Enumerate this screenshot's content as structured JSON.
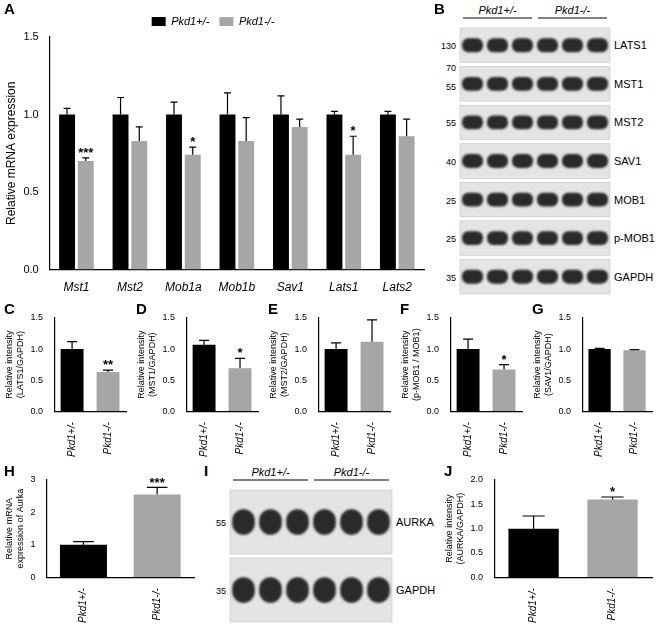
{
  "chart_data": [
    {
      "type": "bar",
      "title": "A",
      "y_label": "Relative mRNA expression",
      "categories": [
        "Mst1",
        "Mst2",
        "Mob1a",
        "Mob1b",
        "Sav1",
        "Lats1",
        "Lats2"
      ],
      "series": [
        {
          "name": "Pkd1+/-",
          "color": "#000000",
          "values": [
            1.0,
            1.0,
            1.0,
            1.0,
            1.0,
            1.0,
            1.0
          ],
          "errors": [
            0.04,
            0.11,
            0.08,
            0.14,
            0.12,
            0.02,
            0.02
          ]
        },
        {
          "name": "Pkd1-/-",
          "color": "#a6a6a6",
          "values": [
            0.7,
            0.83,
            0.74,
            0.83,
            0.92,
            0.74,
            0.86
          ],
          "errors": [
            0.02,
            0.09,
            0.05,
            0.15,
            0.05,
            0.12,
            0.11
          ]
        }
      ],
      "ylim": [
        0,
        1.5
      ],
      "yticks": [
        {
          "value": 0,
          "label": "0.0"
        },
        {
          "value": 0.5,
          "label": "0.5"
        },
        {
          "value": 1,
          "label": "1.0"
        },
        {
          "value": 1.5,
          "label": "1.5"
        }
      ],
      "legend": "top",
      "grid": false,
      "annotations": [
        {
          "text": "***",
          "category": "Mst1",
          "series": "Pkd1-/-"
        },
        {
          "text": "*",
          "category": "Mob1a",
          "series": "Pkd1-/-"
        },
        {
          "text": "*",
          "category": "Lats1",
          "series": "Pkd1-/-"
        }
      ]
    },
    {
      "type": "bar",
      "title": "C",
      "y_label": [
        "Relative intensity",
        "(LATS1/GAPDH)"
      ],
      "categories": [
        "Pkd1+/-",
        "Pkd1-/-"
      ],
      "values": [
        1.0,
        0.63
      ],
      "errors": [
        0.12,
        0.03
      ],
      "colors": [
        "#000000",
        "#a6a6a6"
      ],
      "ylim": [
        0,
        1.5
      ],
      "yticks": [
        {
          "value": 0,
          "label": "0.0"
        },
        {
          "value": 0.5,
          "label": "0.5"
        },
        {
          "value": 1,
          "label": "1.0"
        },
        {
          "value": 1.5,
          "label": "1.5"
        }
      ],
      "grid": false,
      "annotations": [
        {
          "text": "**",
          "category": "Pkd1-/-"
        }
      ]
    },
    {
      "type": "bar",
      "title": "D",
      "y_label": [
        "Relative intensity",
        "(MST1/GAPDH)"
      ],
      "categories": [
        "Pkd1+/-",
        "Pkd1-/-"
      ],
      "values": [
        1.07,
        0.69
      ],
      "errors": [
        0.07,
        0.16
      ],
      "colors": [
        "#000000",
        "#a6a6a6"
      ],
      "ylim": [
        0,
        1.5
      ],
      "yticks": [
        {
          "value": 0,
          "label": "0.0"
        },
        {
          "value": 0.5,
          "label": "0.5"
        },
        {
          "value": 1,
          "label": "1.0"
        },
        {
          "value": 1.5,
          "label": "1.5"
        }
      ],
      "grid": false,
      "annotations": [
        {
          "text": "*",
          "category": "Pkd1-/-"
        }
      ]
    },
    {
      "type": "bar",
      "title": "E",
      "y_label": [
        "Relative intensity",
        "(MST2/GAPDH)"
      ],
      "categories": [
        "Pkd1+/-",
        "Pkd1-/-"
      ],
      "values": [
        1.0,
        1.12
      ],
      "errors": [
        0.1,
        0.35
      ],
      "colors": [
        "#000000",
        "#a6a6a6"
      ],
      "ylim": [
        0,
        1.5
      ],
      "yticks": [
        {
          "value": 0,
          "label": "0.0"
        },
        {
          "value": 0.5,
          "label": "0.5"
        },
        {
          "value": 1,
          "label": "1.0"
        },
        {
          "value": 1.5,
          "label": "1.5"
        }
      ],
      "grid": false
    },
    {
      "type": "bar",
      "title": "F",
      "y_label": [
        "Relative intensity",
        "(p-MOB1 / MOB1)"
      ],
      "categories": [
        "Pkd1+/-",
        "Pkd1-/-"
      ],
      "values": [
        1.0,
        0.67
      ],
      "errors": [
        0.16,
        0.08
      ],
      "colors": [
        "#000000",
        "#a6a6a6"
      ],
      "ylim": [
        0,
        1.5
      ],
      "yticks": [
        {
          "value": 0,
          "label": "0.0"
        },
        {
          "value": 0.5,
          "label": "0.5"
        },
        {
          "value": 1,
          "label": "1.0"
        },
        {
          "value": 1.5,
          "label": "1.5"
        }
      ],
      "grid": false,
      "annotations": [
        {
          "text": "*",
          "category": "Pkd1-/-"
        }
      ]
    },
    {
      "type": "bar",
      "title": "G",
      "y_label": [
        "Relative intensity",
        "(SAV1/GAPDH)"
      ],
      "categories": [
        "Pkd1+/-",
        "Pkd1-/-"
      ],
      "values": [
        1.0,
        0.98
      ],
      "errors": [
        0.01,
        0.01
      ],
      "colors": [
        "#000000",
        "#a6a6a6"
      ],
      "ylim": [
        0,
        1.5
      ],
      "yticks": [
        {
          "value": 0,
          "label": "0.0"
        },
        {
          "value": 0.5,
          "label": "0.5"
        },
        {
          "value": 1,
          "label": "1.0"
        },
        {
          "value": 1.5,
          "label": "1.5"
        }
      ],
      "grid": false
    },
    {
      "type": "bar",
      "title": "H",
      "y_label": [
        "Relative mRNA",
        "expression of Aurka"
      ],
      "categories": [
        "Pkd1+/-",
        "Pkd1-/-"
      ],
      "values": [
        1.0,
        2.55
      ],
      "errors": [
        0.1,
        0.22
      ],
      "colors": [
        "#000000",
        "#a6a6a6"
      ],
      "ylim": [
        0,
        3
      ],
      "yticks": [
        0,
        1,
        2,
        3
      ],
      "grid": false,
      "annotations": [
        {
          "text": "***",
          "category": "Pkd1-/-"
        }
      ]
    },
    {
      "type": "bar",
      "title": "J",
      "y_label": [
        "Relative intensity",
        "(AURKA/GAPDH)"
      ],
      "categories": [
        "Pkd1+/-",
        "Pkd1-/-"
      ],
      "values": [
        1.0,
        1.6
      ],
      "errors": [
        0.26,
        0.05
      ],
      "colors": [
        "#000000",
        "#a6a6a6"
      ],
      "ylim": [
        0,
        2
      ],
      "yticks": [
        {
          "value": 0,
          "label": "0.0"
        },
        {
          "value": 0.5,
          "label": "0.5"
        },
        {
          "value": 1,
          "label": "1.0"
        },
        {
          "value": 1.5,
          "label": "1.5"
        },
        {
          "value": 2,
          "label": "2.0"
        }
      ],
      "grid": false,
      "annotations": [
        {
          "text": "*",
          "category": "Pkd1-/-"
        }
      ]
    }
  ],
  "blots": [
    {
      "title": "B",
      "groups": [
        "Pkd1+/-",
        "Pkd1-/-"
      ],
      "lanes": 3,
      "rows": [
        {
          "label": "LATS1",
          "markers": [
            130
          ]
        },
        {
          "label": "MST1",
          "markers": [
            70,
            55
          ]
        },
        {
          "label": "MST2",
          "markers": [
            55
          ]
        },
        {
          "label": "SAV1",
          "markers": [
            40
          ]
        },
        {
          "label": "MOB1",
          "markers": [
            25
          ]
        },
        {
          "label": "p-MOB1",
          "markers": [
            25
          ]
        },
        {
          "label": "GAPDH",
          "markers": [
            35
          ]
        }
      ]
    },
    {
      "title": "I",
      "groups": [
        "Pkd1+/-",
        "Pkd1-/-"
      ],
      "lanes": 3,
      "rows": [
        {
          "label": "AURKA",
          "markers": [
            55
          ]
        },
        {
          "label": "GAPDH",
          "markers": [
            35
          ]
        }
      ]
    }
  ]
}
